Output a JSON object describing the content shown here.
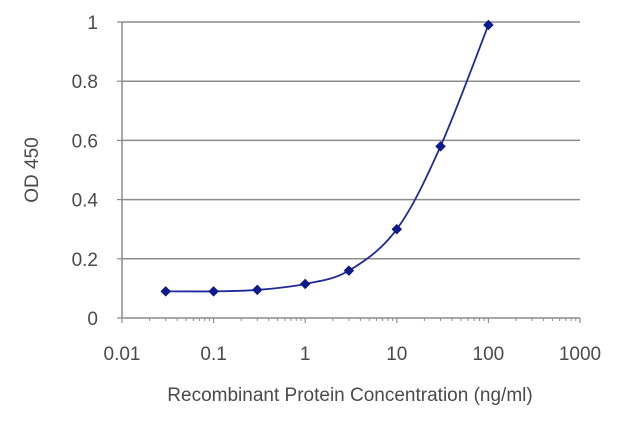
{
  "chart_data": {
    "type": "line",
    "xlabel": "Recombinant Protein Concentration (ng/ml)",
    "ylabel": "OD 450",
    "xscale": "log",
    "xlim": [
      0.01,
      1000
    ],
    "ylim": [
      0,
      1
    ],
    "x_ticks": [
      "0.01",
      "0.1",
      "1",
      "10",
      "100",
      "1000"
    ],
    "y_ticks": [
      "0",
      "0.2",
      "0.4",
      "0.6",
      "0.8",
      "1"
    ],
    "grid": "horizontal",
    "legend": "none",
    "series": [
      {
        "x": [
          0.03,
          0.1,
          0.3,
          1,
          3,
          10,
          30,
          100
        ],
        "y": [
          0.09,
          0.09,
          0.095,
          0.115,
          0.16,
          0.3,
          0.58,
          0.99
        ]
      }
    ],
    "colors": {
      "series": "#1f2a9a",
      "marker": "#0d1a8c",
      "grid": "#8c8c8c",
      "axis": "#8c8c8c"
    }
  }
}
